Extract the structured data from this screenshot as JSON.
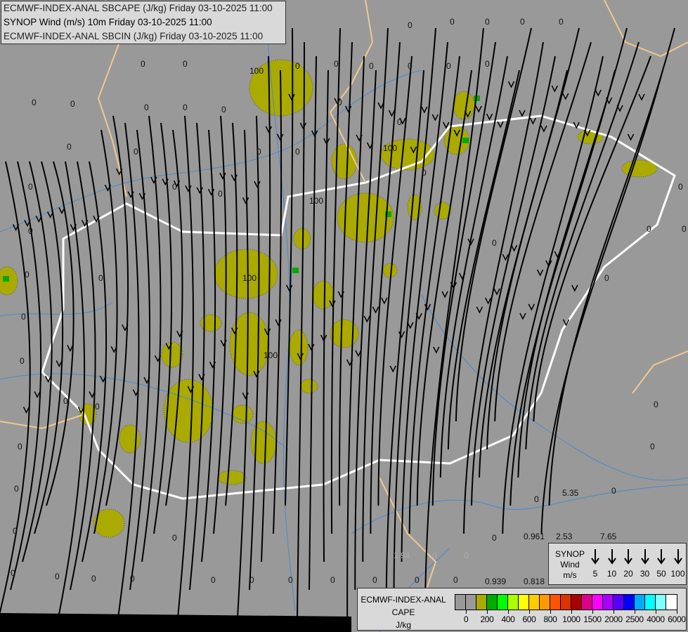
{
  "header": {
    "lines": [
      "ECMWF-INDEX-ANAL SBCAPE (J/kg) Friday 03-10-2025 11:00",
      "SYNOP Wind (m/s) 10m Friday 03-10-2025 11:00",
      "ECMWF-INDEX-ANAL SBCIN (J/kg) Friday 03-10-2025 11:00"
    ]
  },
  "map": {
    "background_color": "#999999",
    "cape_fill_color": "#aaaa00",
    "cape_high_color": "#00aa00",
    "border_color": "#f0c890",
    "country_border_color": "#ffffff",
    "river_color": "#4a88d0",
    "streamline_color": "#000000",
    "contour_labels": [
      "0",
      "0",
      "0",
      "0",
      "0",
      "0",
      "0",
      "0",
      "0",
      "0",
      "0",
      "0",
      "0",
      "0",
      "0",
      "0",
      "0",
      "0",
      "0",
      "0",
      "0",
      "0",
      "0",
      "0",
      "0",
      "0",
      "0",
      "0",
      "0",
      "0",
      "0",
      "0",
      "0",
      "0",
      "0",
      "0",
      "0",
      "0",
      "0",
      "0",
      "0",
      "0",
      "0",
      "0",
      "0",
      "0",
      "0",
      "0",
      "0",
      "0",
      "0",
      "0",
      "0",
      "0",
      "0",
      "0",
      "0",
      "0",
      "0",
      "0",
      "100",
      "100",
      "100",
      "100",
      "100",
      "5.35",
      "0.961",
      "2.53",
      "7.65",
      "0.939",
      "0.818"
    ],
    "faded_labels": [
      "1.94",
      "0",
      "0"
    ]
  },
  "wind_legend": {
    "title_lines": [
      "SYNOP",
      "Wind",
      "m/s"
    ],
    "speeds": [
      "5",
      "10",
      "20",
      "30",
      "50",
      "100"
    ]
  },
  "cape_legend": {
    "title_lines": [
      "ECMWF-INDEX-ANAL",
      "CAPE",
      "J/kg"
    ],
    "colors": [
      "#999999",
      "#999999",
      "#aaaa00",
      "#00aa00",
      "#00ff00",
      "#aaff00",
      "#ffff00",
      "#ffcc00",
      "#ff9900",
      "#ff5500",
      "#dd3300",
      "#aa0000",
      "#dd0088",
      "#ff00ff",
      "#aa00ff",
      "#5500ff",
      "#0000ff",
      "#00aaff",
      "#00ffff",
      "#80ffff",
      "#ffffff"
    ],
    "ticks": [
      "0",
      "200",
      "400",
      "600",
      "800",
      "1000",
      "1500",
      "2000",
      "2500",
      "4000",
      "6000"
    ]
  }
}
